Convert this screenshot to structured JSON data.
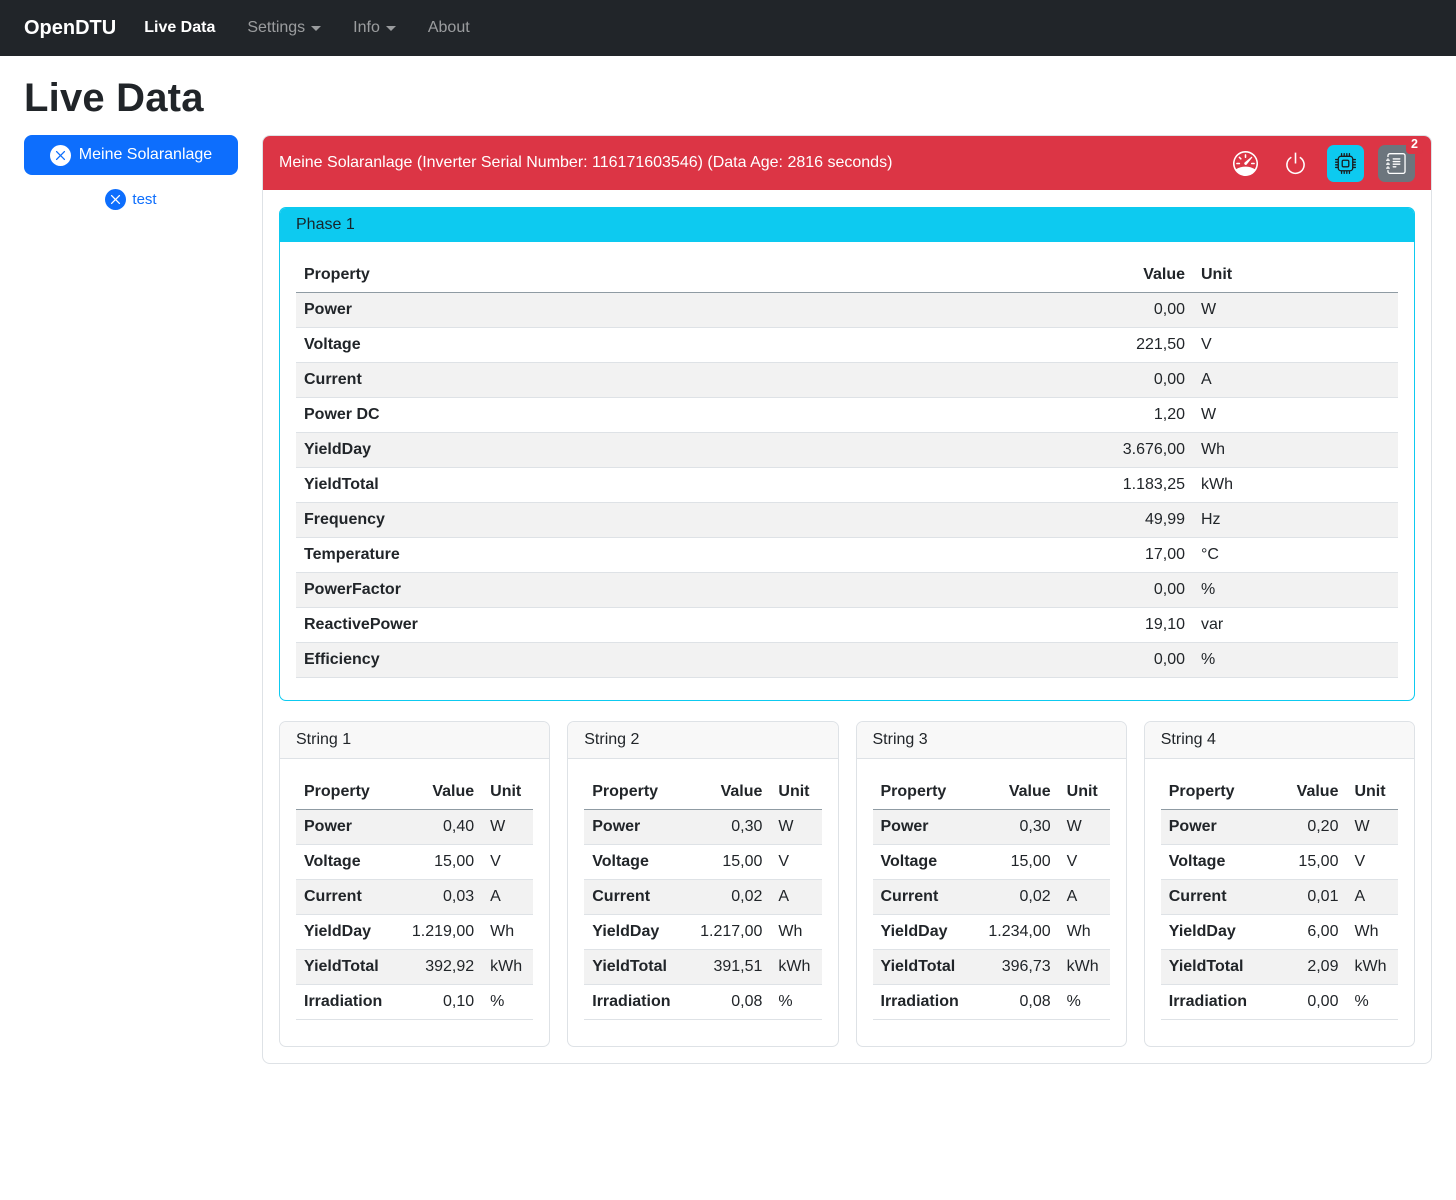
{
  "navbar": {
    "brand": "OpenDTU",
    "items": [
      {
        "label": "Live Data",
        "active": true,
        "dropdown": false
      },
      {
        "label": "Settings",
        "active": false,
        "dropdown": true
      },
      {
        "label": "Info",
        "active": false,
        "dropdown": true
      },
      {
        "label": "About",
        "active": false,
        "dropdown": false
      }
    ]
  },
  "page_title": "Live Data",
  "sidebar": {
    "inverters": [
      {
        "label": "Meine Solaranlage",
        "selected": true,
        "icon": "x-circle-icon"
      },
      {
        "label": "test",
        "selected": false,
        "icon": "x-circle-icon"
      }
    ]
  },
  "inverter": {
    "header": "Meine Solaranlage (Inverter Serial Number: 116171603546) (Data Age: 2816 seconds)",
    "toolbar": {
      "icons": [
        "speedometer-icon",
        "power-icon",
        "cpu-icon",
        "journal-list-icon"
      ],
      "events_badge_count": "2"
    },
    "phase": {
      "title": "Phase 1",
      "columns": [
        "Property",
        "Value",
        "Unit"
      ],
      "rows": [
        [
          "Power",
          "0,00",
          "W"
        ],
        [
          "Voltage",
          "221,50",
          "V"
        ],
        [
          "Current",
          "0,00",
          "A"
        ],
        [
          "Power DC",
          "1,20",
          "W"
        ],
        [
          "YieldDay",
          "3.676,00",
          "Wh"
        ],
        [
          "YieldTotal",
          "1.183,25",
          "kWh"
        ],
        [
          "Frequency",
          "49,99",
          "Hz"
        ],
        [
          "Temperature",
          "17,00",
          "°C"
        ],
        [
          "PowerFactor",
          "0,00",
          "%"
        ],
        [
          "ReactivePower",
          "19,10",
          "var"
        ],
        [
          "Efficiency",
          "0,00",
          "%"
        ]
      ]
    },
    "strings": [
      {
        "title": "String 1",
        "columns": [
          "Property",
          "Value",
          "Unit"
        ],
        "rows": [
          [
            "Power",
            "0,40",
            "W"
          ],
          [
            "Voltage",
            "15,00",
            "V"
          ],
          [
            "Current",
            "0,03",
            "A"
          ],
          [
            "YieldDay",
            "1.219,00",
            "Wh"
          ],
          [
            "YieldTotal",
            "392,92",
            "kWh"
          ],
          [
            "Irradiation",
            "0,10",
            "%"
          ]
        ]
      },
      {
        "title": "String 2",
        "columns": [
          "Property",
          "Value",
          "Unit"
        ],
        "rows": [
          [
            "Power",
            "0,30",
            "W"
          ],
          [
            "Voltage",
            "15,00",
            "V"
          ],
          [
            "Current",
            "0,02",
            "A"
          ],
          [
            "YieldDay",
            "1.217,00",
            "Wh"
          ],
          [
            "YieldTotal",
            "391,51",
            "kWh"
          ],
          [
            "Irradiation",
            "0,08",
            "%"
          ]
        ]
      },
      {
        "title": "String 3",
        "columns": [
          "Property",
          "Value",
          "Unit"
        ],
        "rows": [
          [
            "Power",
            "0,30",
            "W"
          ],
          [
            "Voltage",
            "15,00",
            "V"
          ],
          [
            "Current",
            "0,02",
            "A"
          ],
          [
            "YieldDay",
            "1.234,00",
            "Wh"
          ],
          [
            "YieldTotal",
            "396,73",
            "kWh"
          ],
          [
            "Irradiation",
            "0,08",
            "%"
          ]
        ]
      },
      {
        "title": "String 4",
        "columns": [
          "Property",
          "Value",
          "Unit"
        ],
        "rows": [
          [
            "Power",
            "0,20",
            "W"
          ],
          [
            "Voltage",
            "15,00",
            "V"
          ],
          [
            "Current",
            "0,01",
            "A"
          ],
          [
            "YieldDay",
            "6,00",
            "Wh"
          ],
          [
            "YieldTotal",
            "2,09",
            "kWh"
          ],
          [
            "Irradiation",
            "0,00",
            "%"
          ]
        ]
      }
    ]
  },
  "colors": {
    "navbar_bg": "#212529",
    "danger_header": "#dc3545",
    "info_cyan": "#0dcaf0",
    "primary_blue": "#0d6efd",
    "secondary_gray": "#6c757d",
    "stripe": "#f2f2f2"
  }
}
